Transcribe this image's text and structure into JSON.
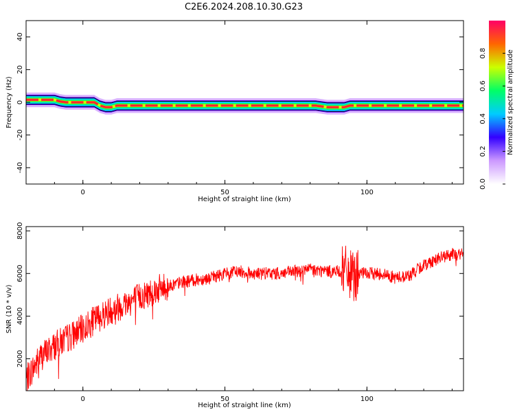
{
  "figure_title": "C2E6.2024.208.10.30.G23",
  "chart_data": [
    {
      "type": "heatmap",
      "name": "spectrogram",
      "xlabel": "Height of straight line (km)",
      "ylabel": "Frequency (Hz)",
      "xlim": [
        -20,
        134
      ],
      "ylim": [
        -50,
        50
      ],
      "xticks": [
        0,
        50,
        100
      ],
      "yticks": [
        -40,
        -20,
        0,
        20,
        40
      ],
      "colorbar": {
        "label": "Normalized spectral amplitude",
        "range": [
          0,
          1
        ],
        "ticks": [
          0.0,
          0.2,
          0.4,
          0.6,
          0.8
        ],
        "colors": [
          "#ffffff",
          "#cc99ff",
          "#3300ff",
          "#00ccff",
          "#00ff66",
          "#ccff00",
          "#ff6600",
          "#ff0066"
        ]
      },
      "ridge": {
        "x": [
          -20,
          -15,
          -12,
          -10,
          -8,
          -6,
          -3,
          0,
          4,
          6,
          8,
          10,
          12,
          15,
          20,
          25,
          30,
          40,
          50,
          60,
          70,
          78,
          82,
          86,
          90,
          92,
          94,
          98,
          100,
          110,
          120,
          134
        ],
        "y": [
          1.5,
          1.5,
          1.5,
          1.5,
          0.5,
          0,
          0,
          0,
          0,
          -2,
          -3,
          -3,
          -2,
          -2,
          -2,
          -2,
          -2,
          -2,
          -2,
          -2,
          -2,
          -2,
          -2,
          -3,
          -3,
          -3,
          -2,
          -2,
          -2,
          -2,
          -2,
          -2
        ]
      }
    },
    {
      "type": "line",
      "name": "snr",
      "xlabel": "Height of straight line (km)",
      "ylabel": "SNR (10 * v/v)",
      "xlim": [
        -20,
        134
      ],
      "ylim": [
        500,
        8200
      ],
      "xticks": [
        0,
        50,
        100
      ],
      "yticks": [
        2000,
        4000,
        6000,
        8000
      ],
      "color": "#ff0000",
      "trend": {
        "x": [
          -20,
          -15,
          -10,
          -5,
          0,
          5,
          10,
          15,
          20,
          25,
          30,
          35,
          40,
          45,
          50,
          55,
          60,
          65,
          70,
          75,
          80,
          85,
          90,
          93,
          95,
          97,
          100,
          105,
          110,
          115,
          120,
          125,
          130,
          134
        ],
        "y": [
          1000,
          2100,
          2600,
          3000,
          3400,
          3900,
          4300,
          4600,
          4900,
          5200,
          5400,
          5600,
          5700,
          5800,
          6000,
          6100,
          6000,
          6000,
          6000,
          6100,
          6200,
          6100,
          6100,
          6100,
          5800,
          6000,
          6000,
          6000,
          5800,
          5900,
          6400,
          6700,
          6900,
          6900
        ]
      }
    }
  ]
}
